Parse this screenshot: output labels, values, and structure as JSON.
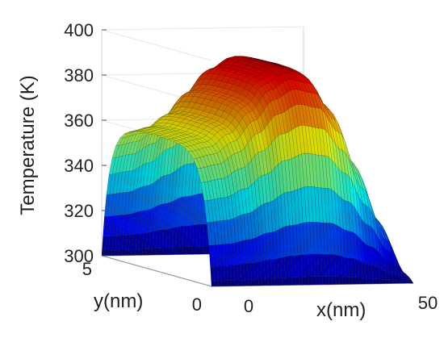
{
  "chart_data": {
    "type": "surface",
    "title": "",
    "xlabel": "x(nm)",
    "ylabel": "y(nm)",
    "zlabel": "Temperature (K)",
    "xlim": [
      0,
      50
    ],
    "ylim": [
      0,
      5
    ],
    "zlim": [
      300,
      400
    ],
    "x_ticks": [
      {
        "value": 0,
        "label": "0"
      },
      {
        "value": 50,
        "label": "50"
      }
    ],
    "y_ticks": [
      {
        "value": 0,
        "label": "0"
      },
      {
        "value": 5,
        "label": "5"
      }
    ],
    "z_ticks": [
      {
        "value": 300,
        "label": "300"
      },
      {
        "value": 320,
        "label": "320"
      },
      {
        "value": 340,
        "label": "340"
      },
      {
        "value": 360,
        "label": "360"
      },
      {
        "value": 380,
        "label": "380"
      },
      {
        "value": 400,
        "label": "400"
      }
    ],
    "colormap": "jet",
    "grid": true,
    "surface_profile": {
      "x": [
        0,
        5,
        10,
        15,
        20,
        25,
        30,
        35,
        40,
        45,
        50
      ],
      "temperature_interior": [
        360,
        362,
        368,
        378,
        388,
        393,
        391,
        378,
        355,
        330,
        305
      ],
      "temperature_at_y_edges": 300
    }
  }
}
